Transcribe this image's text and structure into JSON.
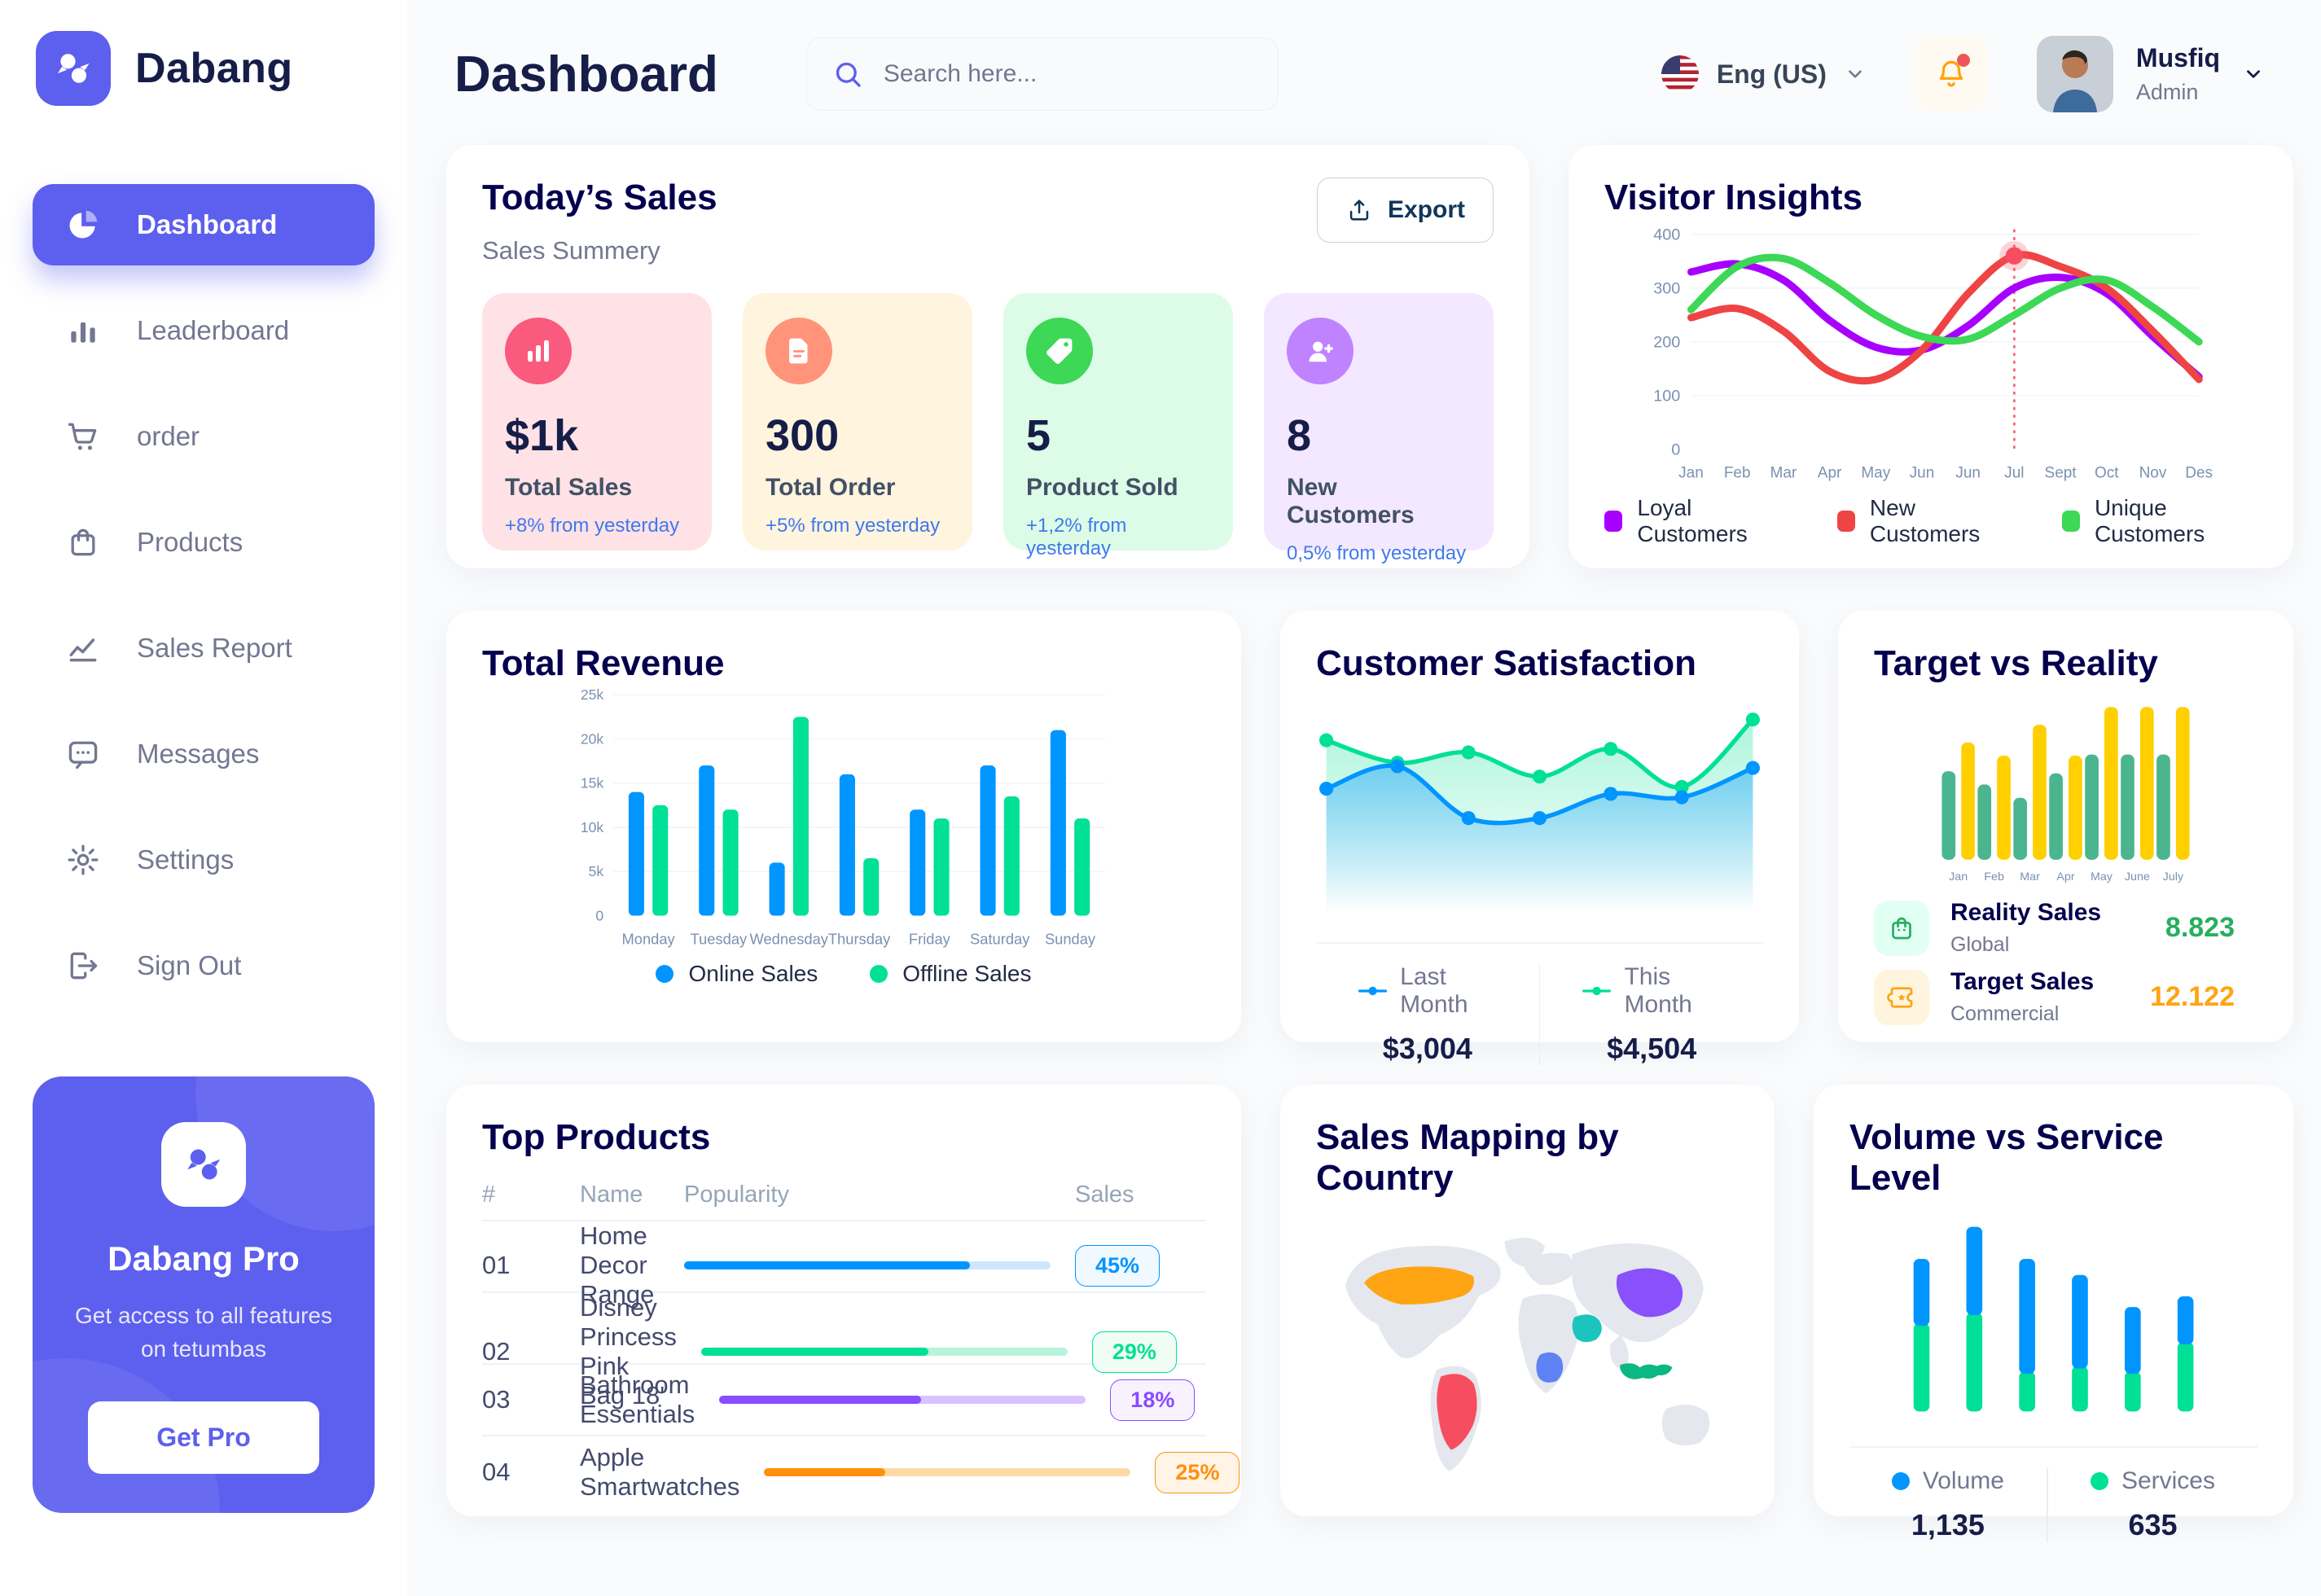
{
  "app": {
    "name": "Dabang",
    "accent_color": "#5D5FEF"
  },
  "sidebar": {
    "items": [
      {
        "label": "Dashboard",
        "icon": "pie-icon",
        "active": true
      },
      {
        "label": "Leaderboard",
        "icon": "bars-icon",
        "active": false
      },
      {
        "label": "order",
        "icon": "cart-icon",
        "active": false
      },
      {
        "label": "Products",
        "icon": "bag-icon",
        "active": false
      },
      {
        "label": "Sales Report",
        "icon": "chart-line-icon",
        "active": false
      },
      {
        "label": "Messages",
        "icon": "message-icon",
        "active": false
      },
      {
        "label": "Settings",
        "icon": "gear-icon",
        "active": false
      },
      {
        "label": "Sign Out",
        "icon": "signout-icon",
        "active": false
      }
    ],
    "pro": {
      "title": "Dabang Pro",
      "description": "Get access to all features on tetumbas",
      "button_label": "Get Pro"
    }
  },
  "header": {
    "title": "Dashboard",
    "search_placeholder": "Search here...",
    "language": "Eng (US)",
    "user": {
      "name": "Musfiq",
      "role": "Admin"
    }
  },
  "today_sales": {
    "title": "Today’s Sales",
    "subtitle": "Sales Summery",
    "export_label": "Export",
    "delta_color": "#4079ED",
    "cards": [
      {
        "value": "$1k",
        "label": "Total Sales",
        "delta": "+8% from yesterday",
        "bg": "#FFE2E5",
        "icon_bg": "#FA5A7D",
        "icon": "stats-icon"
      },
      {
        "value": "300",
        "label": "Total Order",
        "delta": "+5% from yesterday",
        "bg": "#FFF4DE",
        "icon_bg": "#FF947A",
        "icon": "orders-icon"
      },
      {
        "value": "5",
        "label": "Product Sold",
        "delta": "+1,2% from yesterday",
        "bg": "#DCFCE7",
        "icon_bg": "#3CD856",
        "icon": "tag-icon"
      },
      {
        "value": "8",
        "label": "New Customers",
        "delta": "0,5% from yesterday",
        "bg": "#F3E8FF",
        "icon_bg": "#BF83FF",
        "icon": "new-customer-icon"
      }
    ]
  },
  "chart_data": [
    {
      "id": "visitor_insights",
      "type": "line",
      "title": "Visitor Insights",
      "x": [
        "Jan",
        "Feb",
        "Mar",
        "Apr",
        "May",
        "Jun",
        "Jun",
        "Jul",
        "Sept",
        "Oct",
        "Nov",
        "Des"
      ],
      "ylim": [
        0,
        400
      ],
      "yticks": [
        0,
        100,
        200,
        300,
        400
      ],
      "grid": true,
      "legend_position": "bottom",
      "series": [
        {
          "name": "Loyal Customers",
          "color": "#A700FF",
          "values": [
            330,
            345,
            315,
            240,
            190,
            185,
            230,
            300,
            320,
            290,
            210,
            135
          ]
        },
        {
          "name": "New Customers",
          "color": "#EF4444",
          "values": [
            245,
            262,
            220,
            145,
            130,
            185,
            290,
            360,
            340,
            300,
            220,
            130
          ]
        },
        {
          "name": "Unique Customers",
          "color": "#3CD856",
          "values": [
            260,
            340,
            355,
            310,
            250,
            210,
            205,
            250,
            300,
            315,
            265,
            200
          ]
        }
      ],
      "highlight": {
        "x_index": 7,
        "x_label": "Jul",
        "series": "New Customers",
        "value": 360,
        "color": "#F64E60"
      }
    },
    {
      "id": "total_revenue",
      "type": "bar",
      "title": "Total Revenue",
      "categories": [
        "Monday",
        "Tuesday",
        "Wednesday",
        "Thursday",
        "Friday",
        "Saturday",
        "Sunday"
      ],
      "ylim": [
        0,
        25000
      ],
      "yticks": [
        0,
        5000,
        10000,
        15000,
        20000,
        25000
      ],
      "ytick_labels": [
        "0",
        "5k",
        "10k",
        "15k",
        "20k",
        "25k"
      ],
      "grid": true,
      "legend_position": "bottom",
      "series": [
        {
          "name": "Online Sales",
          "color": "#0095FF",
          "values": [
            14000,
            17000,
            6000,
            16000,
            12000,
            17000,
            21000
          ]
        },
        {
          "name": "Offline Sales",
          "color": "#00E096",
          "values": [
            12500,
            12000,
            22500,
            6500,
            11000,
            13500,
            11000
          ]
        }
      ]
    },
    {
      "id": "customer_satisfaction",
      "type": "area",
      "title": "Customer Satisfaction",
      "ylim": [
        0,
        100
      ],
      "legend_position": "bottom",
      "series": [
        {
          "name": "Last Month",
          "color": "#0095FF",
          "total": "$3,004",
          "values": [
            55,
            68,
            38,
            38,
            52,
            50,
            67
          ]
        },
        {
          "name": "This Month",
          "color": "#00E096",
          "total": "$4,504",
          "values": [
            83,
            70,
            76,
            62,
            78,
            56,
            95
          ]
        }
      ]
    },
    {
      "id": "target_vs_reality",
      "type": "bar",
      "title": "Target vs Reality",
      "categories": [
        "Jan",
        "Feb",
        "Mar",
        "Apr",
        "May",
        "June",
        "July"
      ],
      "ylim": [
        0,
        14
      ],
      "legend_position": "bottom",
      "series": [
        {
          "name": "Reality Sales",
          "subtitle": "Global",
          "color": "#4AB58E",
          "value_label": "8.823",
          "value_color": "#27AE60",
          "icon": "bag-small-icon",
          "icon_bg": "#E2FFF3",
          "values": [
            8,
            6.8,
            5.6,
            7.8,
            9.5,
            9.5,
            9.5
          ]
        },
        {
          "name": "Target Sales",
          "subtitle": "Commercial",
          "color": "#FFCF00",
          "value_label": "12.122",
          "value_color": "#FFA412",
          "icon": "ticket-icon",
          "icon_bg": "#FFF4DE",
          "values": [
            10.6,
            9.4,
            12.2,
            9.4,
            13.8,
            13.8,
            13.8
          ]
        }
      ]
    },
    {
      "id": "top_products",
      "type": "table",
      "title": "Top Products",
      "headers": [
        "#",
        "Name",
        "Popularity",
        "Sales"
      ],
      "rows": [
        {
          "num": "01",
          "name": "Home Decor Range",
          "popularity": 78,
          "sales": "45%",
          "color": "#0095FF",
          "track": "#CDE7FF",
          "badge_bg": "#F0F9FF"
        },
        {
          "num": "02",
          "name": "Disney Princess Pink Bag 18'",
          "popularity": 62,
          "sales": "29%",
          "color": "#00E096",
          "track": "#B9F3DC",
          "badge_bg": "#F0FDF4"
        },
        {
          "num": "03",
          "name": "Bathroom Essentials",
          "popularity": 55,
          "sales": "18%",
          "color": "#884DFF",
          "track": "#D9C2FF",
          "badge_bg": "#F8F2FF"
        },
        {
          "num": "04",
          "name": "Apple Smartwatches",
          "popularity": 33,
          "sales": "25%",
          "color": "#FF8F0D",
          "track": "#FFD9A3",
          "badge_bg": "#FFF4E5"
        }
      ]
    },
    {
      "id": "sales_mapping",
      "type": "map",
      "title": "Sales Mapping by Country",
      "countries": [
        {
          "key": "usa",
          "name": "United States",
          "color": "#FFA412"
        },
        {
          "key": "brazil",
          "name": "Brazil",
          "color": "#F64E60"
        },
        {
          "key": "congo",
          "name": "DR Congo",
          "color": "#5E81F4"
        },
        {
          "key": "saudi",
          "name": "Saudi Arabia",
          "color": "#1BC5BD"
        },
        {
          "key": "china",
          "name": "China",
          "color": "#8950FC"
        },
        {
          "key": "indonesia",
          "name": "Indonesia",
          "color": "#0BB783"
        }
      ]
    },
    {
      "id": "volume_service",
      "type": "stacked_bar",
      "title": "Volume vs Service Level",
      "legend_position": "bottom",
      "series": [
        {
          "name": "Volume",
          "color": "#0095FF",
          "total": "1,135",
          "values": [
            25,
            33,
            43,
            35,
            25,
            18
          ]
        },
        {
          "name": "Services",
          "color": "#00E096",
          "total": "635",
          "values": [
            33,
            37,
            15,
            17,
            15,
            26
          ]
        }
      ]
    }
  ]
}
